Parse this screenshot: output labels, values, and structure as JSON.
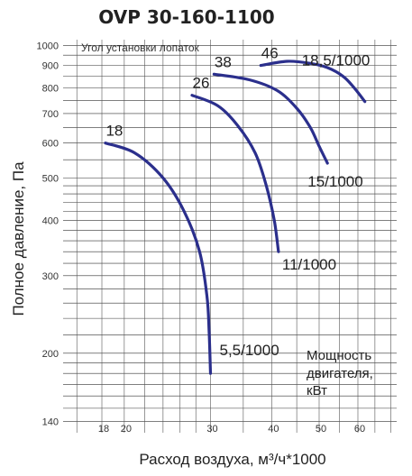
{
  "chart_data": {
    "type": "line",
    "title": "OVP 30-160-1100",
    "xlabel": "Расход воздуха, м³/ч*1000",
    "ylabel": "Полное давление, Па",
    "x_scale": "log",
    "y_scale": "log",
    "xlim": [
      15,
      72
    ],
    "ylim": [
      132,
      1030
    ],
    "x_ticks": [
      18,
      20,
      30,
      40,
      50,
      60
    ],
    "y_ticks": [
      140,
      200,
      300,
      400,
      500,
      600,
      700,
      800,
      900,
      1000
    ],
    "grid": true,
    "annotation_top": "Угол установки лопаток",
    "annotation_power": [
      "Мощность",
      "двигателя,",
      "кВт"
    ],
    "series": [
      {
        "name": "18",
        "power_label": "5,5/1000",
        "points": [
          [
            18.3,
            600
          ],
          [
            21,
            570
          ],
          [
            24,
            500
          ],
          [
            26.5,
            420
          ],
          [
            28.5,
            340
          ],
          [
            29.5,
            270
          ],
          [
            29.8,
            225
          ],
          [
            30,
            180
          ]
        ]
      },
      {
        "name": "26",
        "power_label": "11/1000",
        "points": [
          [
            27.5,
            770
          ],
          [
            31,
            730
          ],
          [
            34,
            660
          ],
          [
            37,
            570
          ],
          [
            39,
            480
          ],
          [
            40.5,
            400
          ],
          [
            41.3,
            340
          ]
        ]
      },
      {
        "name": "38",
        "power_label": "15/1000",
        "points": [
          [
            30.5,
            860
          ],
          [
            36,
            835
          ],
          [
            41,
            790
          ],
          [
            45,
            720
          ],
          [
            48,
            650
          ],
          [
            50,
            590
          ],
          [
            52,
            540
          ]
        ]
      },
      {
        "name": "46",
        "power_label": "18,5/1000",
        "points": [
          [
            38,
            900
          ],
          [
            43,
            920
          ],
          [
            48,
            910
          ],
          [
            52,
            890
          ],
          [
            56,
            850
          ],
          [
            59,
            800
          ],
          [
            62,
            745
          ]
        ]
      }
    ]
  },
  "colors": {
    "curve": "#2b2f8c",
    "grid": "#444444",
    "text": "#222222"
  }
}
